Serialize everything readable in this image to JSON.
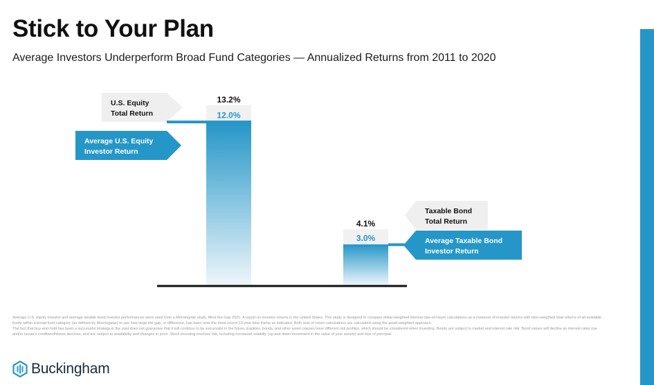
{
  "header": {
    "title": "Stick to Your Plan",
    "subtitle": "Average Investors Underperform Broad Fund Categories — Annualized Returns from 2011 to 2020"
  },
  "chart_data": {
    "type": "bar",
    "categories": [
      "U.S. Equity",
      "Taxable Bond"
    ],
    "series": [
      {
        "name": "Total Return",
        "values": [
          13.2,
          4.1
        ],
        "labels": [
          "13.2%",
          "4.1%"
        ]
      },
      {
        "name": "Investor Return",
        "values": [
          12.0,
          3.0
        ],
        "labels": [
          "12.0%",
          "3.0%"
        ]
      }
    ],
    "callouts": [
      {
        "line1": "U.S. Equity",
        "line2": "Total Return"
      },
      {
        "line1": "Average U.S. Equity",
        "line2": "Investor Return"
      },
      {
        "line1": "Taxable Bond",
        "line2": "Total Return"
      },
      {
        "line1": "Average Taxable Bond",
        "line2": "Investor Return"
      }
    ],
    "ylim": [
      0,
      13.2
    ],
    "grid": false,
    "colors": {
      "total": "#f1f1f1",
      "investor": "#2596c8",
      "investor_fade": "#eef6fb",
      "callout_gray": "#efefef",
      "axis": "#111111"
    }
  },
  "footnote": {
    "p1": "Average U.S. equity investor and average taxable bond investor performances were used from a Morningstar study, Mind the Gap 2021: A report on investor returns in the United States. This study is designed to compare dollar-weighted internal rate-of-return calculations as a measure of investor returns with time-weighted total returns of all available funds within a broad fund category (as defined by Morningstar) to see how large the gap, or difference, has been over the most recent 10-year time frame as indicated. Both sets of return calculations are calculated using the asset-weighted approach.",
    "p2": "The fact that buy-and-hold has been a successful strategy in the past does not guarantee that it will continue to be successful in the future. Equities, bonds, and other asset classes have different risk profiles, which should be considered when investing. Bonds are subject to market and interest rate risk. Bond values will decline as interest rates rise and/or issuer's creditworthiness declines, and are subject to availability and changes in price. Stock investing involves risk, including increased volatility (up and down movement in the value of your assets) and loss of principal."
  },
  "brand": {
    "name": "Buckingham",
    "icon": "buckingham-logo-icon"
  }
}
